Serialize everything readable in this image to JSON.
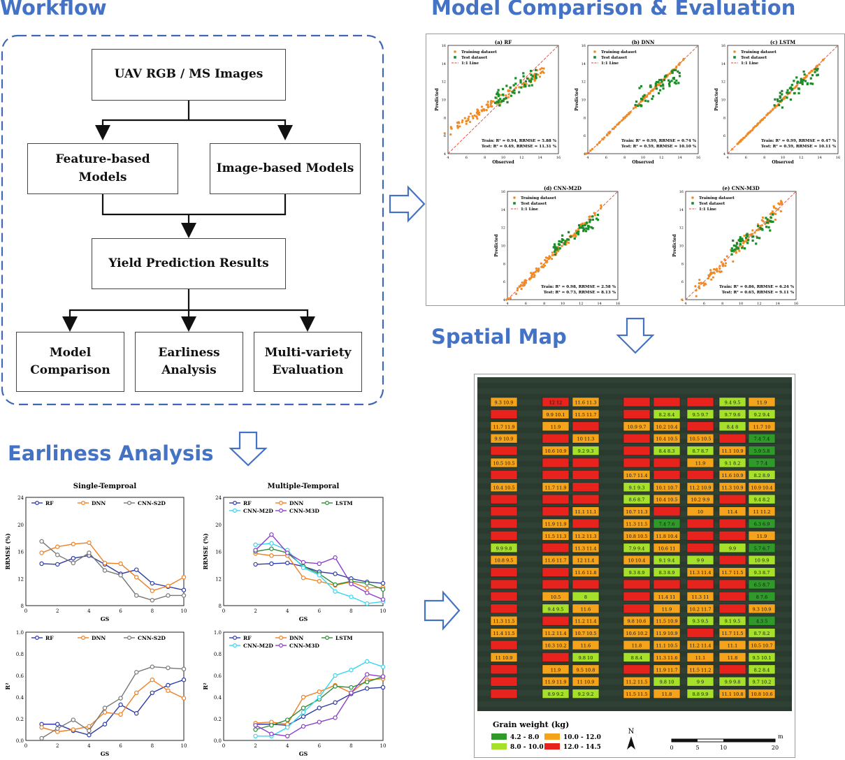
{
  "headings": {
    "workflow": "Workflow",
    "model_comparison": "Model Comparison & Evaluation",
    "spatial_map": "Spatial Map",
    "earliness": "Earliness Analysis"
  },
  "workflow": {
    "images": "UAV RGB / MS Images",
    "feature": "Feature-based\nModels",
    "image": "Image-based Models",
    "yield": "Yield Prediction Results",
    "model_comp": "Model\nComparison",
    "earliness": "Earliness\nAnalysis",
    "multi": "Multi-variety\nEvaluation"
  },
  "scatter": {
    "xlabel": "Observed",
    "ylabel": "Predicted",
    "legend": [
      "Training dataset",
      "Test dataset",
      "1:1 Line"
    ],
    "axis": [
      4,
      16
    ],
    "ticks": [
      4,
      6,
      8,
      10,
      12,
      14,
      16
    ],
    "colors": {
      "train": "#f08a24",
      "test": "#1a8c2a",
      "line": "#e8412c"
    },
    "panels": [
      {
        "title": "(a) RF",
        "train": "Train: R² = 0.94, RRMSE = 5.88 %",
        "test": "Test: R² = 0.49, RRMSE = 11.31 %",
        "spread": 0.45,
        "test_spread": 1.1
      },
      {
        "title": "(b) DNN",
        "train": "Train: R² = 0.99, RRMSE = 0.74 %",
        "test": "Test: R² = 0.59, RRMSE = 10.10 %",
        "spread": 0.08,
        "test_spread": 1.2
      },
      {
        "title": "(c) LSTM",
        "train": "Train: R² = 0.99, RRMSE = 0.47 %",
        "test": "Test: R² = 0.59, RRMSE = 10.11 %",
        "spread": 0.06,
        "test_spread": 1.2
      },
      {
        "title": "(d) CNN-M2D",
        "train": "Train: R² = 0.98, RRMSE = 2.58 %",
        "test": "Test: R² = 0.73, RRMSE = 8.13 %",
        "spread": 0.3,
        "test_spread": 0.8
      },
      {
        "title": "(e) CNN-M3D",
        "train": "Train: R² = 0.86, RRMSE = 6.24 %",
        "test": "Test: R² = 0.65, RRMSE = 9.11 %",
        "spread": 0.6,
        "test_spread": 1.0
      }
    ]
  },
  "chart_data": [
    {
      "type": "line",
      "title": "Single-Temproal",
      "xlabel": "GS",
      "ylabel": "RRMSE (%)",
      "ylim": [
        8,
        24
      ],
      "yticks": [
        8,
        12,
        16,
        20,
        24
      ],
      "series": [
        {
          "name": "RF",
          "color": "#2d3aa8",
          "x": [
            1,
            2,
            3,
            4,
            5,
            6,
            7,
            8,
            9,
            10
          ],
          "values": [
            14.2,
            14.1,
            15.0,
            15.4,
            14.1,
            12.7,
            13.3,
            11.3,
            10.8,
            10.3
          ]
        },
        {
          "name": "DNN",
          "color": "#f07f22",
          "x": [
            1,
            2,
            3,
            4,
            5,
            6,
            7,
            8,
            9,
            10
          ],
          "values": [
            15.8,
            16.7,
            17.1,
            17.3,
            14.3,
            14.2,
            12.2,
            10.2,
            10.9,
            12.2
          ]
        },
        {
          "name": "CNN-S2D",
          "color": "#777777",
          "x": [
            1,
            2,
            3,
            4,
            5,
            6,
            7,
            8,
            9,
            10
          ],
          "values": [
            17.5,
            15.5,
            14.3,
            15.8,
            13.2,
            12.5,
            9.5,
            8.8,
            9.5,
            9.5
          ]
        }
      ]
    },
    {
      "type": "line",
      "title": "Multiple-Temporal",
      "xlabel": "GS",
      "ylabel": "RRMSE (%)",
      "ylim": [
        8,
        24
      ],
      "yticks": [
        8,
        12,
        16,
        20,
        24
      ],
      "series": [
        {
          "name": "RF",
          "color": "#2d3aa8",
          "x": [
            2,
            3,
            4,
            5,
            6,
            7,
            8,
            9,
            10
          ],
          "values": [
            14.1,
            14.2,
            14.3,
            13.8,
            13.0,
            12.7,
            12.0,
            11.5,
            11.3
          ]
        },
        {
          "name": "DNN",
          "color": "#f07f22",
          "x": [
            2,
            3,
            4,
            5,
            6,
            7,
            8,
            9,
            10
          ],
          "values": [
            15.7,
            15.4,
            15.4,
            12.1,
            11.6,
            11.0,
            11.5,
            10.6,
            10.7
          ]
        },
        {
          "name": "LSTM",
          "color": "#2e8b3a",
          "x": [
            2,
            3,
            4,
            5,
            6,
            7,
            8,
            9,
            10
          ],
          "values": [
            16.0,
            16.4,
            15.8,
            13.8,
            12.7,
            11.1,
            11.6,
            11.3,
            10.4
          ]
        },
        {
          "name": "CNN-M2D",
          "color": "#35d6f0",
          "x": [
            2,
            3,
            4,
            5,
            6,
            7,
            8,
            9,
            10
          ],
          "values": [
            17.0,
            17.2,
            16.2,
            13.6,
            12.5,
            10.1,
            9.3,
            8.3,
            8.6
          ]
        },
        {
          "name": "CNN-M3D",
          "color": "#8a3ec8",
          "x": [
            2,
            3,
            4,
            5,
            6,
            7,
            8,
            9,
            10
          ],
          "values": [
            16.2,
            18.5,
            15.8,
            14.4,
            14.2,
            15.1,
            11.2,
            9.9,
            8.9
          ]
        }
      ]
    },
    {
      "type": "line",
      "xlabel": "GS",
      "ylabel": "R²",
      "ylim": [
        0,
        1
      ],
      "yticks": [
        0,
        0.2,
        0.4,
        0.6,
        0.8,
        1.0
      ],
      "series": [
        {
          "name": "RF",
          "color": "#2d3aa8",
          "x": [
            1,
            2,
            3,
            4,
            5,
            6,
            7,
            8,
            9,
            10
          ],
          "values": [
            0.15,
            0.15,
            0.09,
            0.05,
            0.15,
            0.33,
            0.25,
            0.44,
            0.51,
            0.56
          ]
        },
        {
          "name": "DNN",
          "color": "#f07f22",
          "x": [
            1,
            2,
            3,
            4,
            5,
            6,
            7,
            8,
            9,
            10
          ],
          "values": [
            0.12,
            0.08,
            0.1,
            0.13,
            0.26,
            0.24,
            0.44,
            0.56,
            0.46,
            0.39
          ]
        },
        {
          "name": "CNN-S2D",
          "color": "#777777",
          "x": [
            1,
            2,
            3,
            4,
            5,
            6,
            7,
            8,
            9,
            10
          ],
          "values": [
            0.02,
            0.11,
            0.19,
            0.09,
            0.3,
            0.39,
            0.63,
            0.68,
            0.67,
            0.66
          ]
        }
      ]
    },
    {
      "type": "line",
      "xlabel": "GS",
      "ylabel": "R²",
      "ylim": [
        0,
        1
      ],
      "yticks": [
        0,
        0.2,
        0.4,
        0.6,
        0.8,
        1.0
      ],
      "series": [
        {
          "name": "RF",
          "color": "#2d3aa8",
          "x": [
            2,
            3,
            4,
            5,
            6,
            7,
            8,
            9,
            10
          ],
          "values": [
            0.15,
            0.15,
            0.14,
            0.22,
            0.3,
            0.35,
            0.43,
            0.48,
            0.49
          ]
        },
        {
          "name": "DNN",
          "color": "#f07f22",
          "x": [
            2,
            3,
            4,
            5,
            6,
            7,
            8,
            9,
            10
          ],
          "values": [
            0.16,
            0.17,
            0.15,
            0.4,
            0.45,
            0.51,
            0.44,
            0.56,
            0.57
          ]
        },
        {
          "name": "LSTM",
          "color": "#2e8b3a",
          "x": [
            2,
            3,
            4,
            5,
            6,
            7,
            8,
            9,
            10
          ],
          "values": [
            0.1,
            0.14,
            0.19,
            0.3,
            0.38,
            0.5,
            0.49,
            0.54,
            0.59
          ]
        },
        {
          "name": "CNN-M2D",
          "color": "#35d6f0",
          "x": [
            2,
            3,
            4,
            5,
            6,
            7,
            8,
            9,
            10
          ],
          "values": [
            0.04,
            0.04,
            0.12,
            0.26,
            0.4,
            0.6,
            0.65,
            0.73,
            0.68
          ]
        },
        {
          "name": "CNN-M3D",
          "color": "#8a3ec8",
          "x": [
            2,
            3,
            4,
            5,
            6,
            7,
            8,
            9,
            10
          ],
          "values": [
            0.14,
            0.06,
            0.04,
            0.13,
            0.17,
            0.21,
            0.44,
            0.61,
            0.59
          ]
        }
      ]
    }
  ],
  "map": {
    "legend_title": "Grain weight (kg)",
    "classes": [
      {
        "label": "4.2 - 8.0",
        "color": "#2f9a2a"
      },
      {
        "label": "8.0 - 10.0",
        "color": "#a6e02a"
      },
      {
        "label": "10.0 - 12.0",
        "color": "#f5a31a"
      },
      {
        "label": "12.0 - 14.5",
        "color": "#e8231e"
      }
    ],
    "north": "N",
    "scale_unit": "m",
    "scale_ticks": [
      "0",
      "5",
      "10",
      "20"
    ],
    "columns": [
      [
        "9.3 10.9",
        "",
        "11.7 11.9",
        "9.9 10.9",
        "",
        "10.5 10.5",
        "",
        "10.4 10.5",
        "",
        "",
        "",
        "",
        "9.9 9.8",
        "10.8 9.5",
        "",
        "",
        "",
        "",
        "11.3 11.5",
        "11.4 11.5",
        "",
        "11 10.9",
        "",
        "",
        ""
      ],
      [
        "12 12",
        "9.9 10.1",
        "11.9",
        "",
        "10.6 10.9",
        "",
        "",
        "11.7 11.9",
        "",
        "",
        "11.9 11.9",
        "11.5 11.3",
        "",
        "11.6 11.7",
        "",
        "",
        "10.5",
        "9.4 9.5",
        "",
        "11.2 11.4",
        "10.3 10.2",
        "",
        "11.9",
        "11.9 11.9",
        "8.9 9.2"
      ],
      [
        "11.6 11.3",
        "11.5 11.7",
        "",
        "10 11.3",
        "9.2 9.3",
        "",
        "",
        "",
        "",
        "11.1 11.1",
        "",
        "11.2 11.3",
        "11.3 11.4",
        "12 11.4",
        "11.6 11.8",
        "",
        "8",
        "11.6",
        "11.2 11.4",
        "10.7 10.5",
        "11.6",
        "9.8 10",
        "9.5 10.8",
        "11 10.9",
        "9.2 9.2"
      ],
      [
        "",
        "",
        "10.9 9.7",
        "",
        "",
        "",
        "10.7 11.4",
        "9.1 9.3",
        "8.6 8.7",
        "10.7 11.3",
        "11.3 11.5",
        "10.8 10.5",
        "7.9 9.4",
        "10 10.4",
        "9.3 8.9",
        "",
        "",
        "",
        "9.8 10.6",
        "10.6 10.2",
        "11.8",
        "8 8.4",
        "",
        "11.2 11.5",
        "11.5 11.5"
      ],
      [
        "",
        "8.2 8.4",
        "10.2 10.4",
        "10.4 10.5",
        "8.4 8.3",
        "",
        "",
        "10.1 10.7",
        "10.4 10.5",
        "",
        "7.4 7.6",
        "11.8 10.4",
        "10.6 11",
        "9.1 9.4",
        "8.3 8.9",
        "",
        "11.4 11",
        "11.9",
        "11.5 10.9",
        "11.9 10.9",
        "11.1 10.5",
        "11.3 11.6",
        "11.9 11.7",
        "9.8 10",
        "11.8"
      ],
      [
        "",
        "9.5 9.7",
        "",
        "10.5 10.5",
        "8.7 8.7",
        "11.9",
        "",
        "11.2 10.9",
        "10.2 9.9",
        "10",
        "",
        "",
        "",
        "9 9",
        "11.3 11.4",
        "",
        "11.3 11",
        "10.2 11.7",
        "9.3 9.5",
        "",
        "11.2 11.4",
        "11.1",
        "11.5 11.2",
        "9 9",
        "8.8 9.9"
      ],
      [
        "9.4 9.5",
        "9.7 9.6",
        "8.4 8",
        "",
        "11.1 10.9",
        "9.1 8.2",
        "11.6 10.9",
        "11.3 10.9",
        "",
        "11.4",
        "",
        "",
        "9.9",
        "",
        "11.7 11.5",
        "",
        "",
        "",
        "9.1 9.5",
        "11.7 11.5",
        "11.1",
        "11.8",
        "",
        "9.9 9.8",
        "11.1 10.8"
      ],
      [
        "11.9",
        "9.2 9.4",
        "11.7 10",
        "7.4 7.4",
        "5.9 5.8",
        "7 7.4",
        "8.2 8.9",
        "10.9 10.4",
        "9.4 8.2",
        "11 11.2",
        "6.3 6.9",
        "11.9",
        "5.7 6.7",
        "10 9.9",
        "9.3 8.7",
        "6.5 8.7",
        "8 7.6",
        "9.3 10.9",
        "4.3 5",
        "8.7 8.2",
        "10.5 10.7",
        "9.5 10.1",
        "8.2 8.4",
        "9.7 10.2",
        "10.8 10.6"
      ]
    ]
  }
}
